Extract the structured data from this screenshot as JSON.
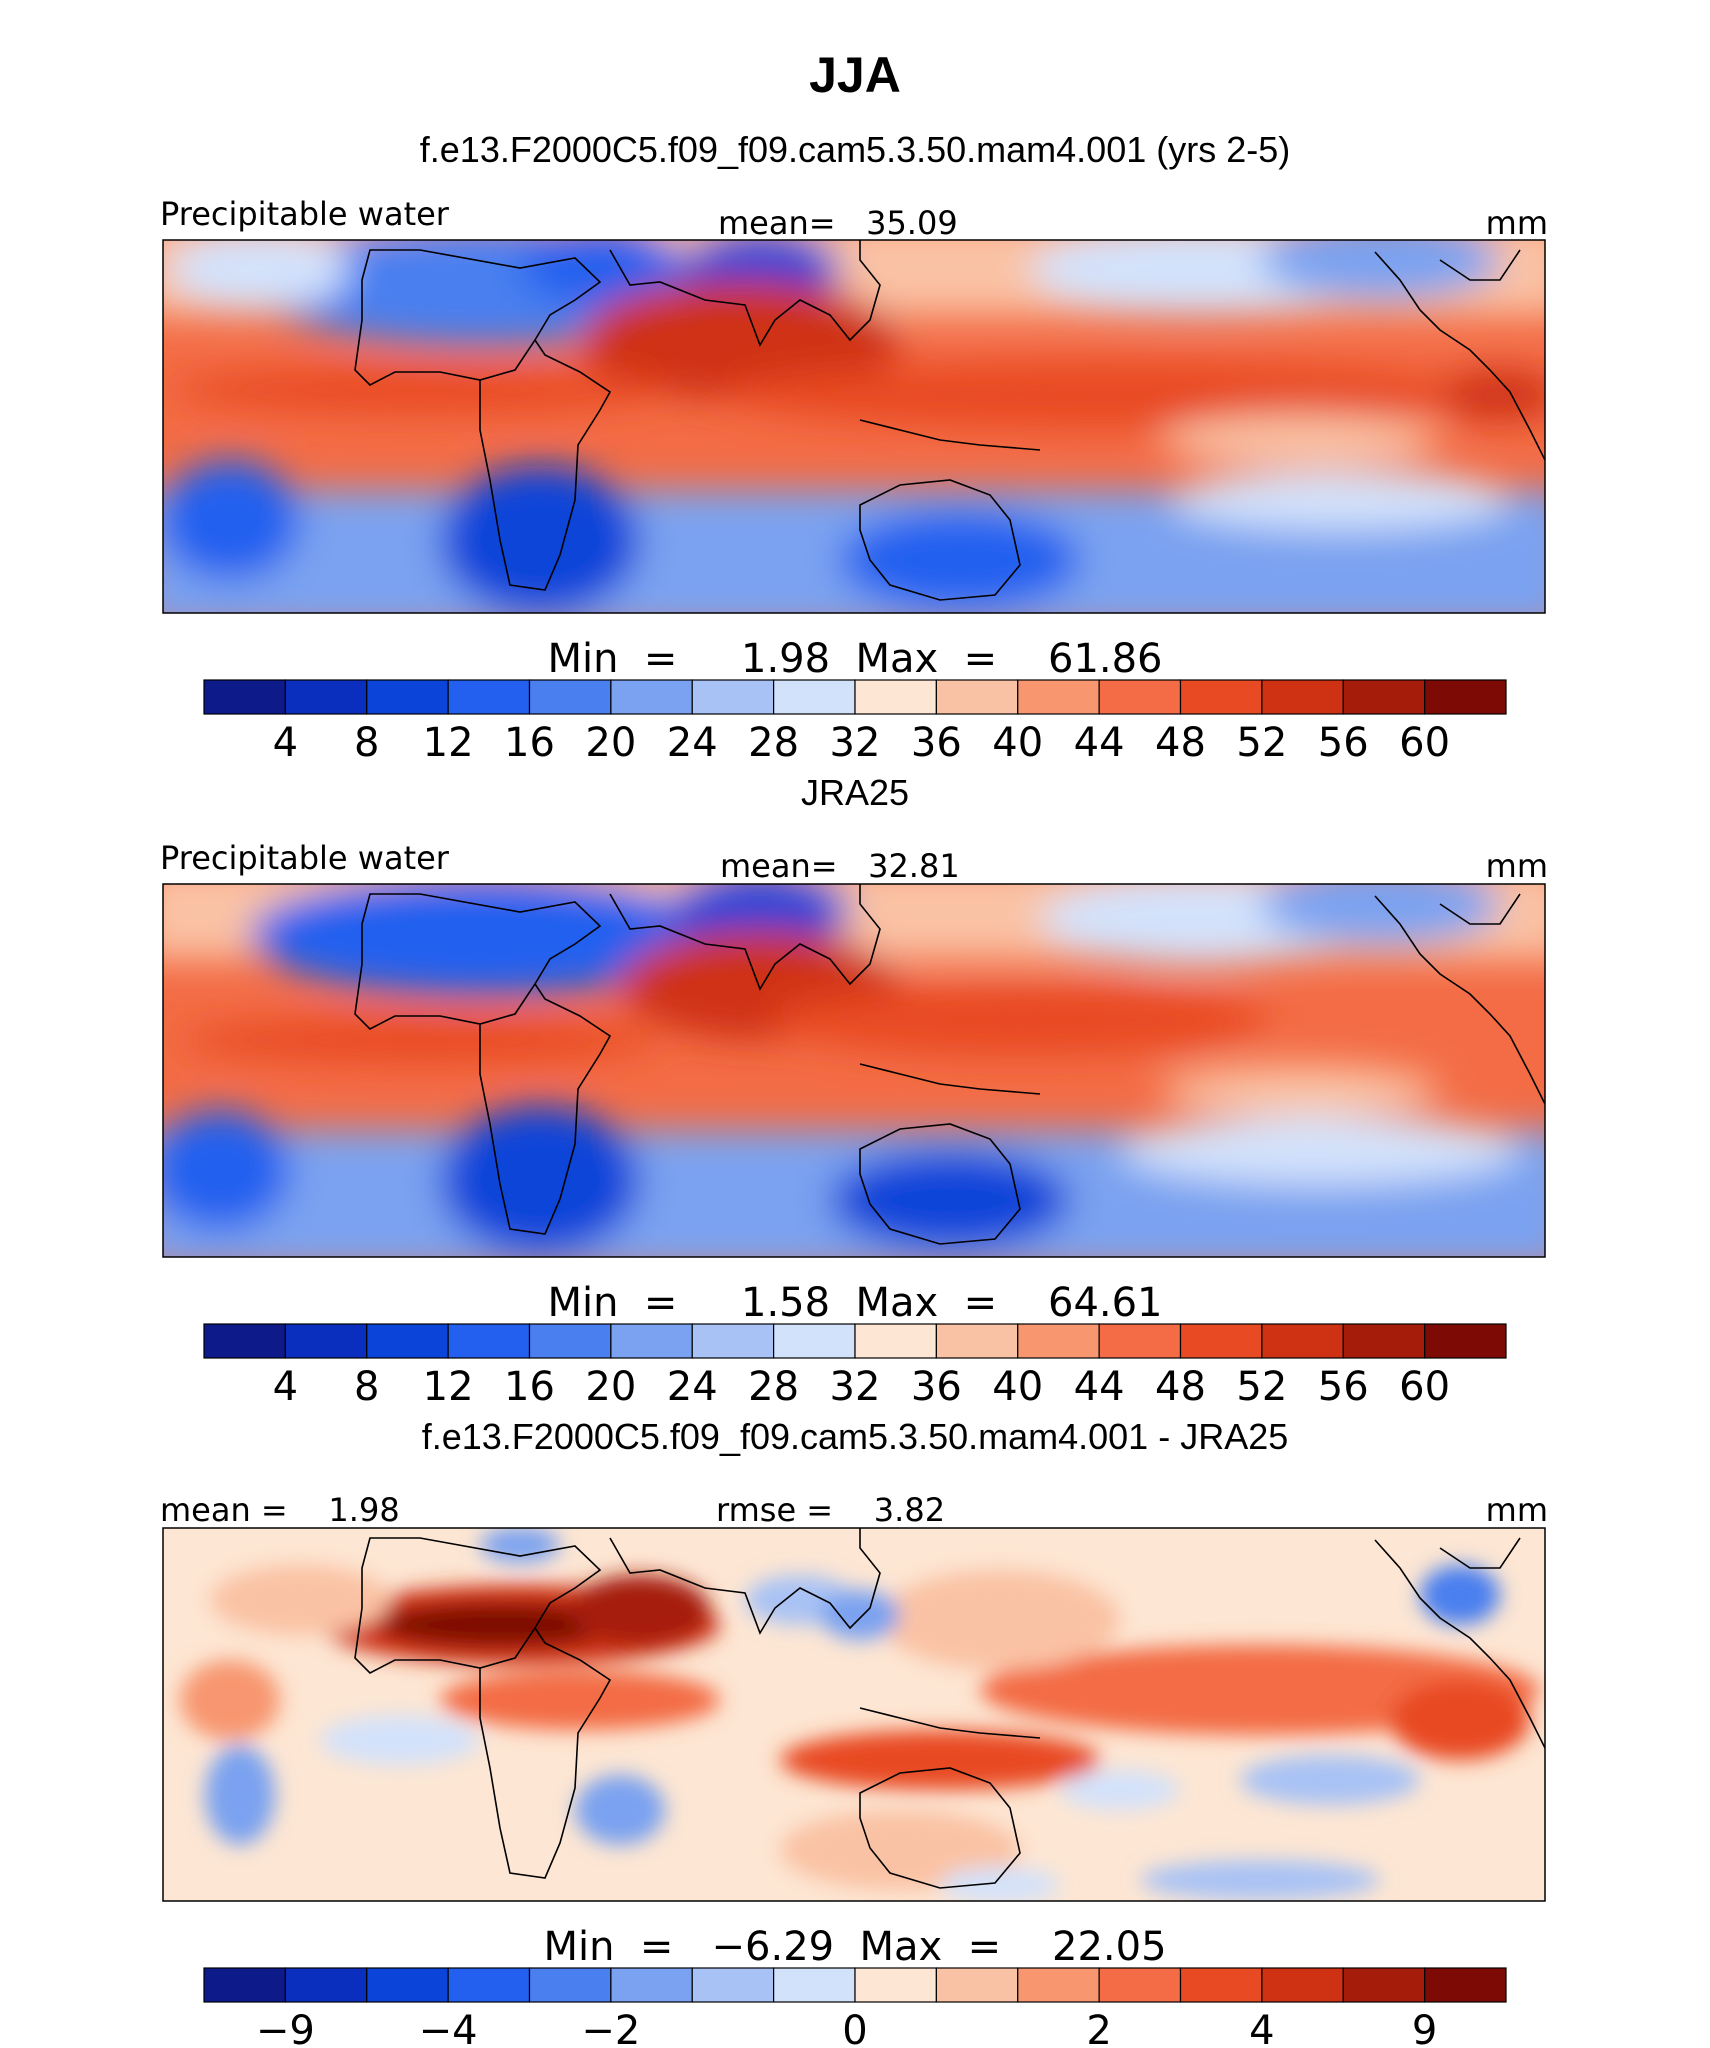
{
  "title": "JJA",
  "colors": {
    "blue_red_16": [
      "#0c1a8a",
      "#0a2fbf",
      "#0b44d9",
      "#2360ef",
      "#4a7fef",
      "#7aa2f0",
      "#a8c2f5",
      "#d3e2fb",
      "#fde6d3",
      "#fac2a4",
      "#f7966f",
      "#f36c45",
      "#e84a24",
      "#cf3113",
      "#a61c0b",
      "#7d0a04"
    ],
    "land_outline": "#000000",
    "frame": "#000000"
  },
  "chart_data": [
    {
      "type": "heatmap",
      "title": "f.e13.F2000C5.f09_f09.cam5.3.50.mam4.001 (yrs 2-5)",
      "left_label": "Precipitable water",
      "center_label": "mean=   35.09",
      "right_label": "mm",
      "min_max_label": "Min  =     1.98  Max  =    61.86",
      "mean": 35.09,
      "min": 1.98,
      "max": 61.86,
      "units": "mm",
      "colorbar_labels": [
        "4",
        "8",
        "12",
        "16",
        "20",
        "24",
        "28",
        "32",
        "36",
        "40",
        "44",
        "48",
        "52",
        "56",
        "60"
      ],
      "levels": [
        4,
        8,
        12,
        16,
        20,
        24,
        28,
        32,
        36,
        40,
        44,
        48,
        52,
        56,
        60
      ]
    },
    {
      "type": "heatmap",
      "title": "JRA25",
      "left_label": "Precipitable water",
      "center_label": "mean=   32.81",
      "right_label": "mm",
      "min_max_label": "Min  =     1.58  Max  =    64.61",
      "mean": 32.81,
      "min": 1.58,
      "max": 64.61,
      "units": "mm",
      "colorbar_labels": [
        "4",
        "8",
        "12",
        "16",
        "20",
        "24",
        "28",
        "32",
        "36",
        "40",
        "44",
        "48",
        "52",
        "56",
        "60"
      ],
      "levels": [
        4,
        8,
        12,
        16,
        20,
        24,
        28,
        32,
        36,
        40,
        44,
        48,
        52,
        56,
        60
      ]
    },
    {
      "type": "heatmap",
      "title": "f.e13.F2000C5.f09_f09.cam5.3.50.mam4.001 - JRA25",
      "left_label": "mean =    1.98",
      "center_label": "rmse =    3.82",
      "right_label": "mm",
      "min_max_label": "Min  =   −6.29  Max  =    22.05",
      "mean": 1.98,
      "rmse": 3.82,
      "min": -6.29,
      "max": 22.05,
      "units": "mm",
      "colorbar_labels": [
        "−9",
        "−4",
        "−2",
        "0",
        "2",
        "4",
        "9"
      ],
      "levels": [
        -9,
        -6,
        -4,
        -3,
        -2,
        -1,
        0,
        1,
        2,
        3,
        4,
        6,
        9
      ]
    }
  ]
}
